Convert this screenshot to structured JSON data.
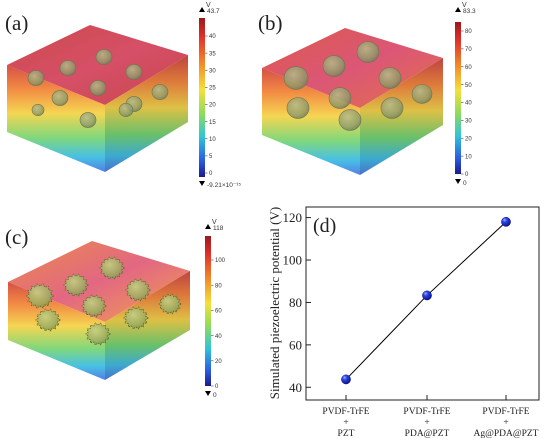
{
  "panels": [
    {
      "label": "(a)",
      "colorbar": {
        "unit": "V",
        "max_label": "43.7",
        "min_label": "-9.21×10⁻¹⁵",
        "ticks": [
          "40",
          "35",
          "30",
          "25",
          "20",
          "15",
          "10",
          "5",
          "0"
        ]
      },
      "particle_style": "smooth",
      "particle_count": 11
    },
    {
      "label": "(b)",
      "colorbar": {
        "unit": "V",
        "max_label": "83.3",
        "min_label": "0",
        "ticks": [
          "80",
          "70",
          "60",
          "50",
          "40",
          "30",
          "20",
          "10",
          "0"
        ]
      },
      "particle_style": "smooth",
      "particle_count": 9
    },
    {
      "label": "(c)",
      "colorbar": {
        "unit": "V",
        "max_label": "118",
        "min_label": "0",
        "ticks": [
          "100",
          "80",
          "60",
          "40",
          "20",
          "0"
        ]
      },
      "particle_style": "spiky",
      "particle_count": 9
    }
  ],
  "chart_data": {
    "type": "line",
    "panel_label": "(d)",
    "categories": [
      [
        "PVDF-TrFE",
        "+",
        "PZT"
      ],
      [
        "PVDF-TrFE",
        "+",
        "PDA@PZT"
      ],
      [
        "PVDF-TrFE",
        "+",
        "Ag@PDA@PZT"
      ]
    ],
    "values": [
      43.7,
      83.3,
      118
    ],
    "ylabel": "Simulated piezoelectric potential (V)",
    "ylim": [
      34,
      125
    ],
    "yticks": [
      40,
      60,
      80,
      100,
      120
    ],
    "grid": false,
    "marker": "sphere",
    "marker_color": "#1a2fd6",
    "line_color": "#000000"
  }
}
